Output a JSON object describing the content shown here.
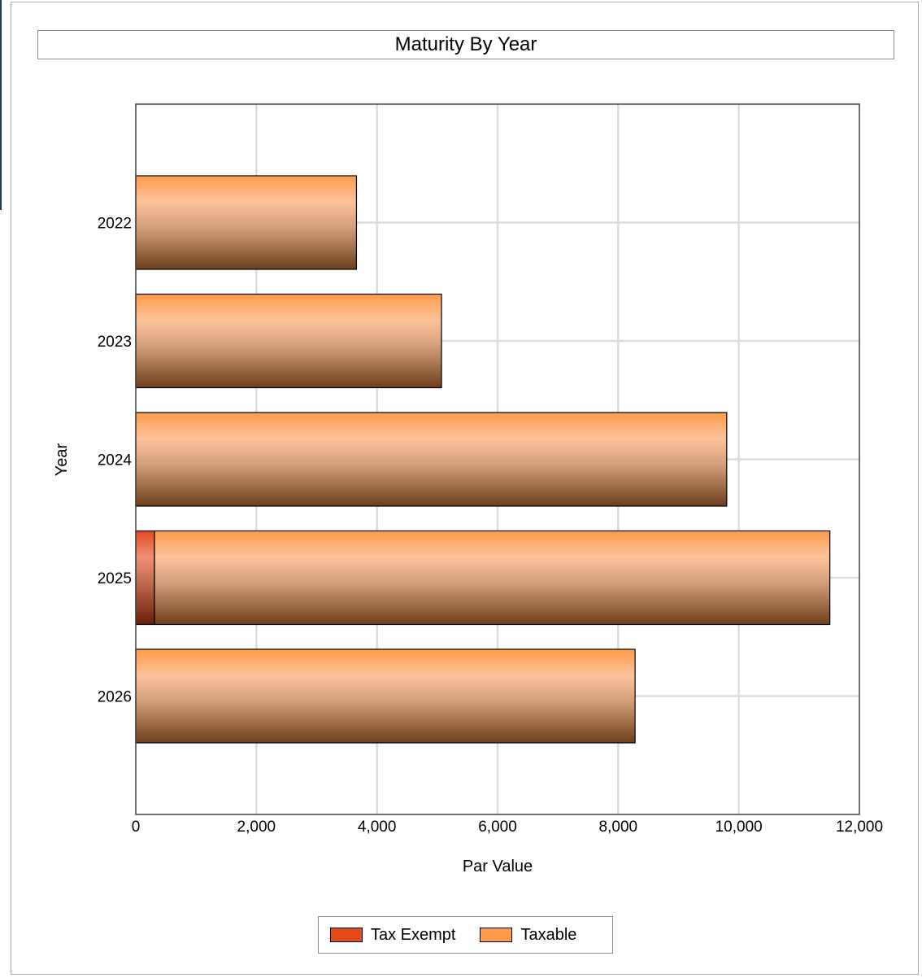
{
  "chart_data": {
    "type": "bar",
    "orientation": "horizontal",
    "stacked": true,
    "title": "Maturity By Year",
    "xlabel": "Par Value",
    "ylabel": "Year",
    "xlim": [
      0,
      12000
    ],
    "xticks": [
      0,
      2000,
      4000,
      6000,
      8000,
      10000,
      12000
    ],
    "xtick_labels": [
      "0",
      "2,000",
      "4,000",
      "6,000",
      "8,000",
      "10,000",
      "12,000"
    ],
    "categories": [
      "2022",
      "2023",
      "2024",
      "2025",
      "2026"
    ],
    "series": [
      {
        "name": "Tax Exempt",
        "color": "#e24a1a",
        "values": [
          0,
          0,
          0,
          310,
          0
        ]
      },
      {
        "name": "Taxable",
        "color": "#ff9a4a",
        "values": [
          3660,
          5070,
          9800,
          11200,
          8280
        ]
      }
    ],
    "grid": true,
    "legend_position": "bottom"
  }
}
